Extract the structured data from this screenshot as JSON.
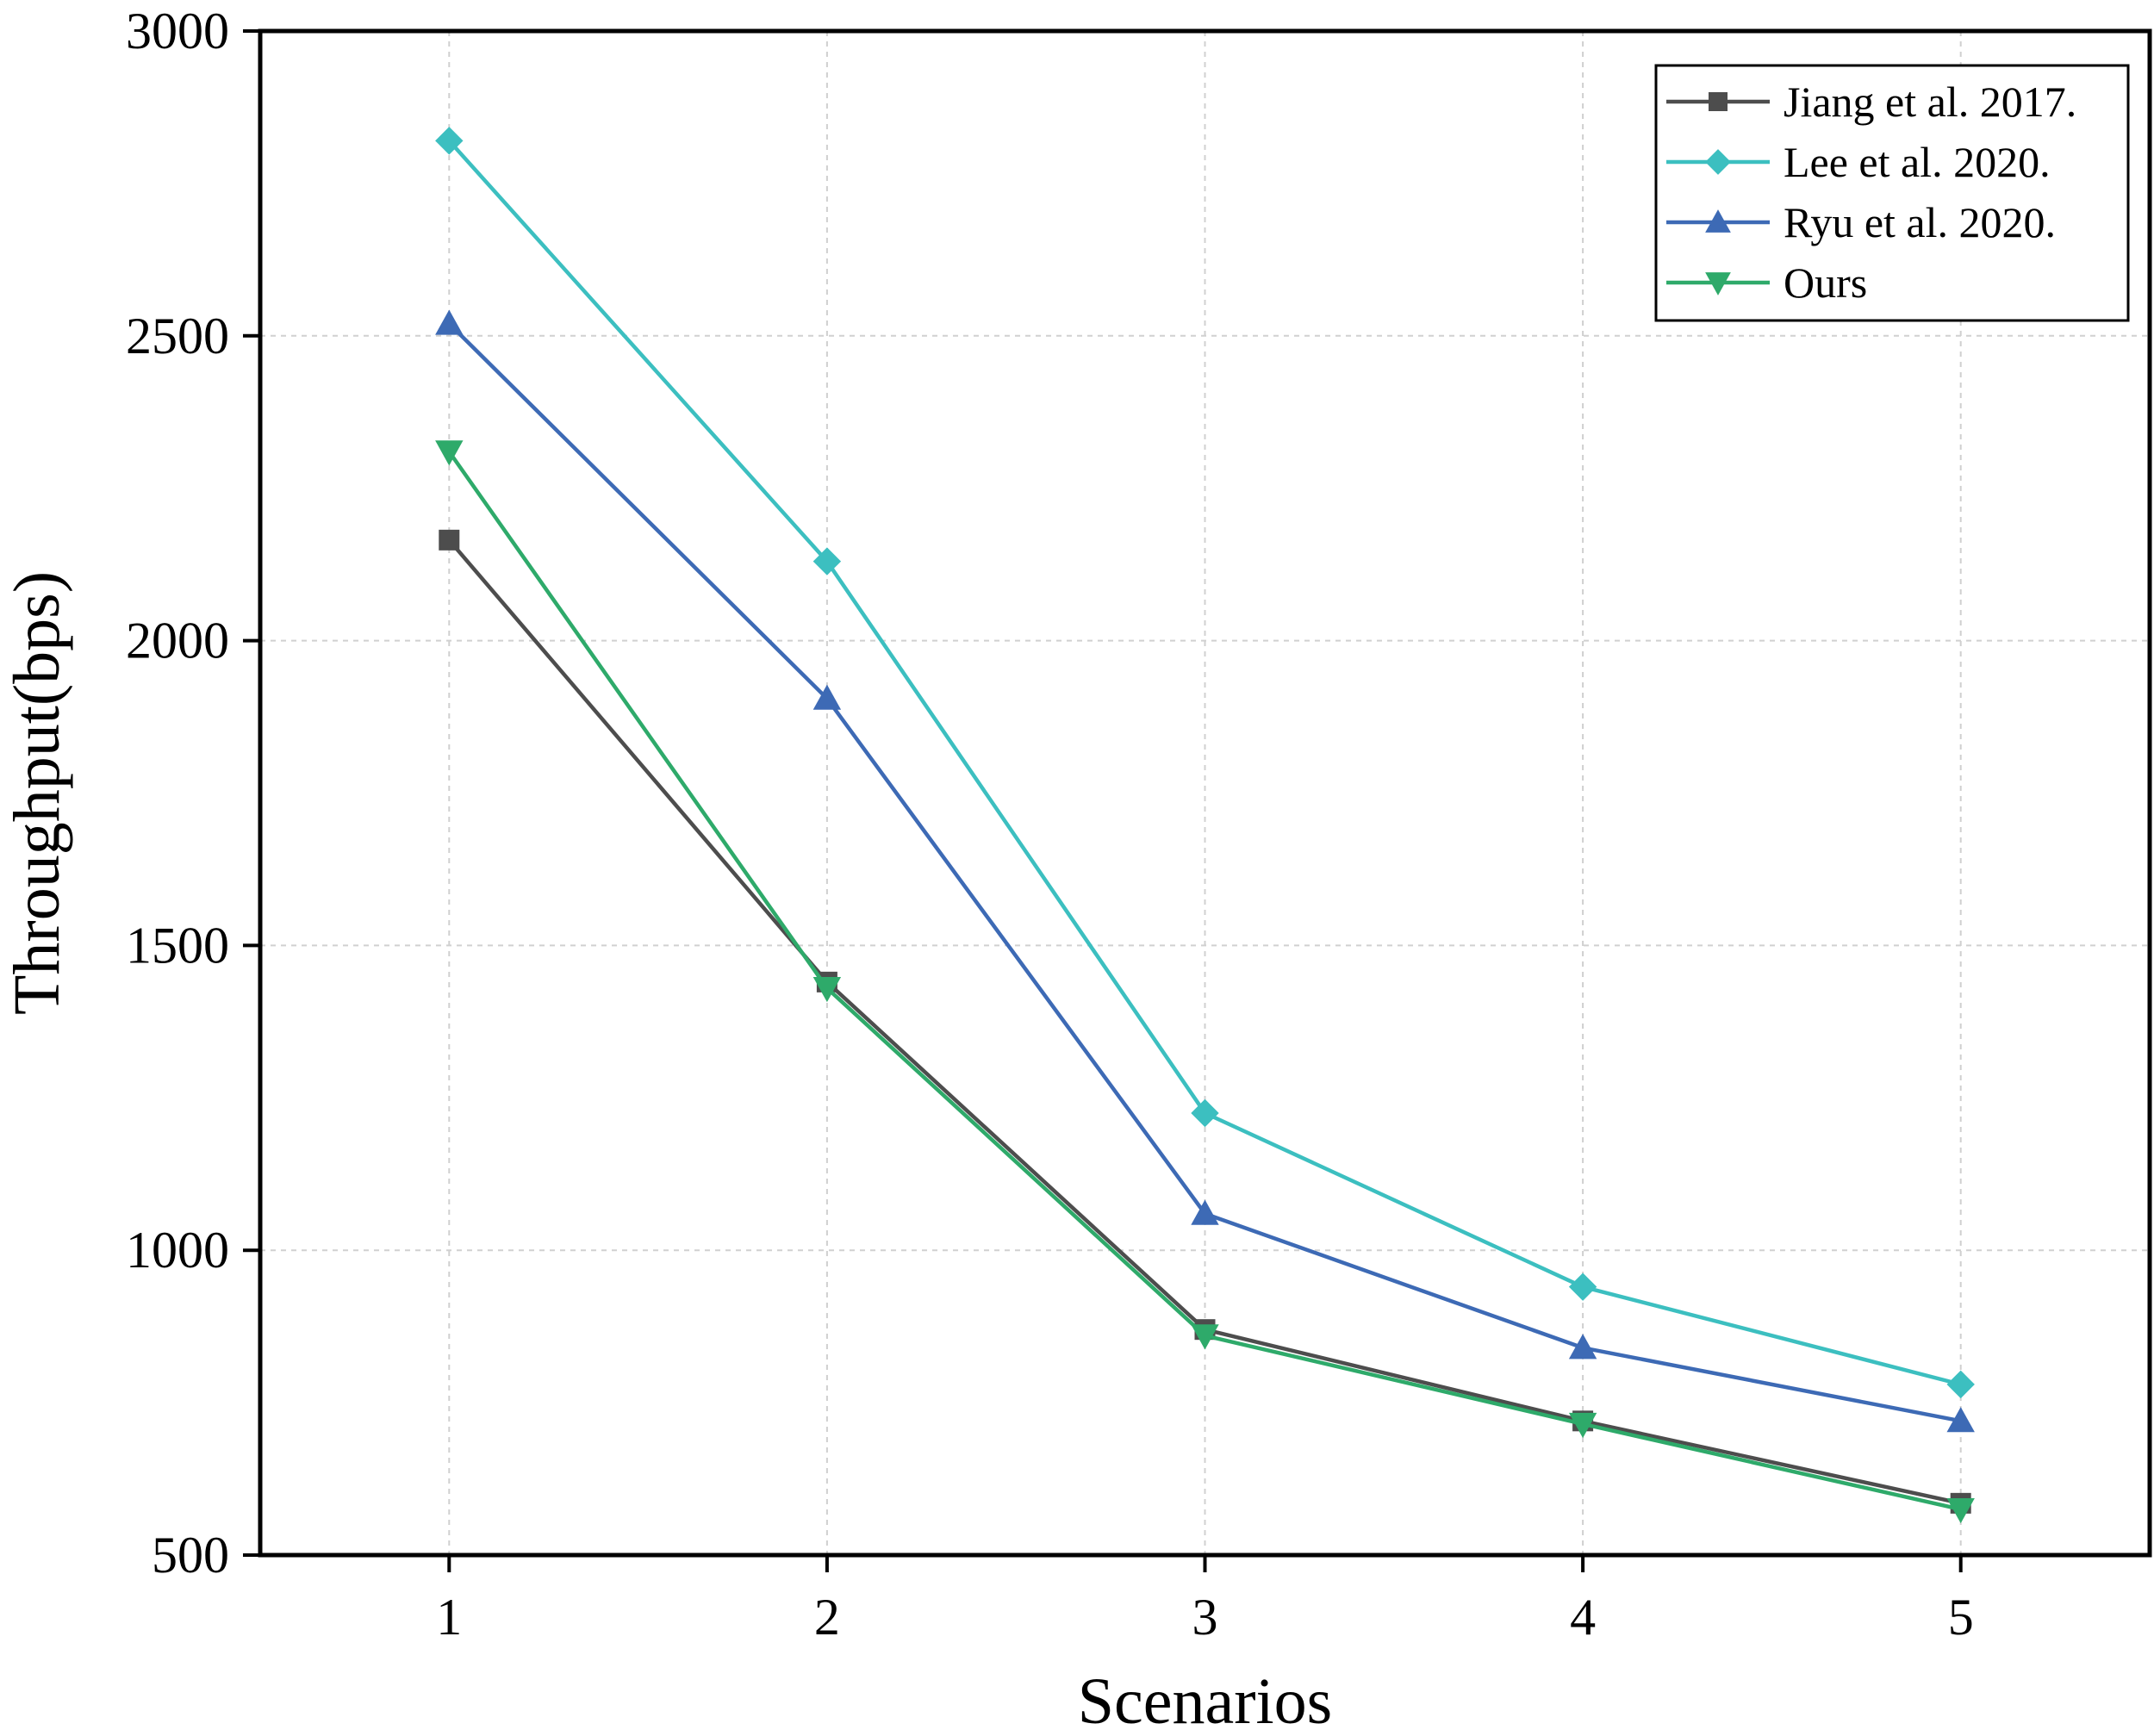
{
  "chart_data": {
    "type": "line",
    "x": [
      1,
      2,
      3,
      4,
      5
    ],
    "x_tick_labels": [
      "1",
      "2",
      "3",
      "4",
      "5"
    ],
    "y_tick_labels": [
      "500",
      "1000",
      "1500",
      "2000",
      "2500",
      "3000"
    ],
    "y_ticks": [
      500,
      1000,
      1500,
      2000,
      2500,
      3000
    ],
    "xlim": [
      0.5,
      5.5
    ],
    "ylim": [
      500,
      3000
    ],
    "xlabel": "Scenarios",
    "ylabel": "Throughput(bps)",
    "grid": true,
    "legend_position": "top-right",
    "series": [
      {
        "name": "Jiang et al. 2017.",
        "color": "#4d4d4d",
        "marker": "square",
        "values": [
          2165,
          1440,
          870,
          720,
          585
        ]
      },
      {
        "name": "Lee et al. 2020.",
        "color": "#3cbfc0",
        "marker": "diamond",
        "values": [
          2820,
          2130,
          1225,
          940,
          780
        ]
      },
      {
        "name": "Ryu et al. 2020.",
        "color": "#3d6ab5",
        "marker": "triangle-up",
        "values": [
          2520,
          1905,
          1060,
          840,
          720
        ]
      },
      {
        "name": "Ours",
        "color": "#2eaa6a",
        "marker": "triangle-down",
        "values": [
          2310,
          1430,
          860,
          715,
          575
        ]
      }
    ]
  }
}
